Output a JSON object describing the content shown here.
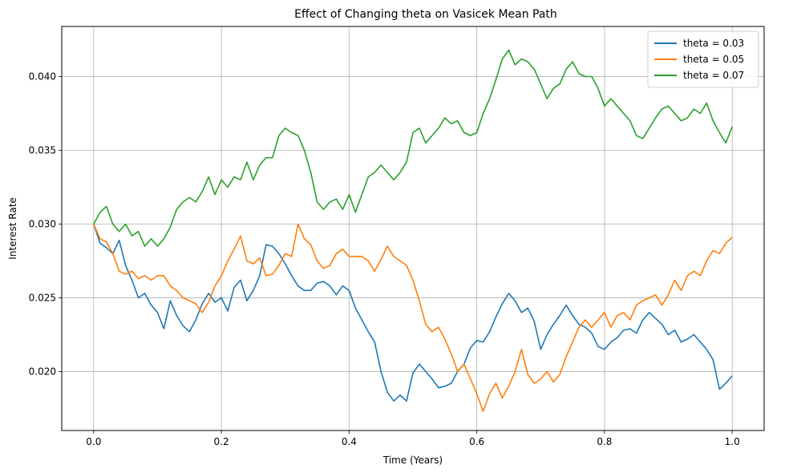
{
  "chart_data": {
    "type": "line",
    "title": "Effect of Changing theta on Vasicek Mean Path",
    "xlabel": "Time (Years)",
    "ylabel": "Interest Rate",
    "xlim": [
      -0.05,
      1.05
    ],
    "ylim": [
      0.016,
      0.0434
    ],
    "xticks": [
      0.0,
      0.2,
      0.4,
      0.6,
      0.8,
      1.0
    ],
    "xtick_labels": [
      "0.0",
      "0.2",
      "0.4",
      "0.6",
      "0.8",
      "1.0"
    ],
    "yticks": [
      0.02,
      0.025,
      0.03,
      0.035,
      0.04
    ],
    "ytick_labels": [
      "0.020",
      "0.025",
      "0.030",
      "0.035",
      "0.040"
    ],
    "grid": true,
    "legend_position": "top-right",
    "series": [
      {
        "name": "theta = 0.03",
        "color": "#1f77b4",
        "points": [
          [
            0.0,
            0.03
          ],
          [
            0.01,
            0.0287
          ],
          [
            0.02,
            0.0284
          ],
          [
            0.03,
            0.028
          ],
          [
            0.04,
            0.0289
          ],
          [
            0.05,
            0.0272
          ],
          [
            0.06,
            0.0262
          ],
          [
            0.07,
            0.025
          ],
          [
            0.08,
            0.0253
          ],
          [
            0.09,
            0.0245
          ],
          [
            0.1,
            0.024
          ],
          [
            0.11,
            0.0229
          ],
          [
            0.12,
            0.0248
          ],
          [
            0.13,
            0.0238
          ],
          [
            0.14,
            0.0231
          ],
          [
            0.15,
            0.0227
          ],
          [
            0.16,
            0.0235
          ],
          [
            0.17,
            0.0246
          ],
          [
            0.18,
            0.0253
          ],
          [
            0.19,
            0.0247
          ],
          [
            0.2,
            0.025
          ],
          [
            0.21,
            0.0241
          ],
          [
            0.22,
            0.0257
          ],
          [
            0.23,
            0.0262
          ],
          [
            0.24,
            0.0248
          ],
          [
            0.25,
            0.0255
          ],
          [
            0.26,
            0.0265
          ],
          [
            0.27,
            0.0286
          ],
          [
            0.28,
            0.0285
          ],
          [
            0.29,
            0.028
          ],
          [
            0.3,
            0.0273
          ],
          [
            0.31,
            0.0265
          ],
          [
            0.32,
            0.0258
          ],
          [
            0.33,
            0.0255
          ],
          [
            0.34,
            0.0255
          ],
          [
            0.35,
            0.026
          ],
          [
            0.36,
            0.0261
          ],
          [
            0.37,
            0.0258
          ],
          [
            0.38,
            0.0252
          ],
          [
            0.39,
            0.0258
          ],
          [
            0.4,
            0.0255
          ],
          [
            0.41,
            0.0243
          ],
          [
            0.42,
            0.0235
          ],
          [
            0.43,
            0.0227
          ],
          [
            0.44,
            0.022
          ],
          [
            0.45,
            0.02
          ],
          [
            0.46,
            0.0186
          ],
          [
            0.47,
            0.018
          ],
          [
            0.48,
            0.0184
          ],
          [
            0.49,
            0.018
          ],
          [
            0.5,
            0.0199
          ],
          [
            0.51,
            0.0205
          ],
          [
            0.52,
            0.02
          ],
          [
            0.53,
            0.0195
          ],
          [
            0.54,
            0.0189
          ],
          [
            0.55,
            0.019
          ],
          [
            0.56,
            0.0192
          ],
          [
            0.57,
            0.02
          ],
          [
            0.58,
            0.0205
          ],
          [
            0.59,
            0.0216
          ],
          [
            0.6,
            0.0221
          ],
          [
            0.61,
            0.022
          ],
          [
            0.62,
            0.0227
          ],
          [
            0.63,
            0.0237
          ],
          [
            0.64,
            0.0246
          ],
          [
            0.65,
            0.0253
          ],
          [
            0.66,
            0.0248
          ],
          [
            0.67,
            0.024
          ],
          [
            0.68,
            0.0243
          ],
          [
            0.69,
            0.0234
          ],
          [
            0.7,
            0.0215
          ],
          [
            0.71,
            0.0225
          ],
          [
            0.72,
            0.0232
          ],
          [
            0.73,
            0.0238
          ],
          [
            0.74,
            0.0245
          ],
          [
            0.75,
            0.0238
          ],
          [
            0.76,
            0.0232
          ],
          [
            0.77,
            0.023
          ],
          [
            0.78,
            0.0226
          ],
          [
            0.79,
            0.0217
          ],
          [
            0.8,
            0.0215
          ],
          [
            0.81,
            0.022
          ],
          [
            0.82,
            0.0223
          ],
          [
            0.83,
            0.0228
          ],
          [
            0.84,
            0.0229
          ],
          [
            0.85,
            0.0226
          ],
          [
            0.86,
            0.0235
          ],
          [
            0.87,
            0.024
          ],
          [
            0.88,
            0.0236
          ],
          [
            0.89,
            0.0232
          ],
          [
            0.9,
            0.0225
          ],
          [
            0.91,
            0.0228
          ],
          [
            0.92,
            0.022
          ],
          [
            0.93,
            0.0222
          ],
          [
            0.94,
            0.0225
          ],
          [
            0.95,
            0.022
          ],
          [
            0.96,
            0.0215
          ],
          [
            0.97,
            0.0208
          ],
          [
            0.98,
            0.0188
          ],
          [
            0.99,
            0.0192
          ],
          [
            1.0,
            0.0197
          ]
        ]
      },
      {
        "name": "theta = 0.05",
        "color": "#ff7f0e",
        "points": [
          [
            0.0,
            0.03
          ],
          [
            0.01,
            0.029
          ],
          [
            0.02,
            0.0288
          ],
          [
            0.03,
            0.028
          ],
          [
            0.04,
            0.0268
          ],
          [
            0.05,
            0.0266
          ],
          [
            0.06,
            0.0268
          ],
          [
            0.07,
            0.0263
          ],
          [
            0.08,
            0.0265
          ],
          [
            0.09,
            0.0262
          ],
          [
            0.1,
            0.0265
          ],
          [
            0.11,
            0.0265
          ],
          [
            0.12,
            0.0258
          ],
          [
            0.13,
            0.0255
          ],
          [
            0.14,
            0.025
          ],
          [
            0.15,
            0.0248
          ],
          [
            0.16,
            0.0246
          ],
          [
            0.17,
            0.024
          ],
          [
            0.18,
            0.0247
          ],
          [
            0.19,
            0.0258
          ],
          [
            0.2,
            0.0265
          ],
          [
            0.21,
            0.0275
          ],
          [
            0.22,
            0.0283
          ],
          [
            0.23,
            0.0292
          ],
          [
            0.24,
            0.0275
          ],
          [
            0.25,
            0.0273
          ],
          [
            0.26,
            0.0277
          ],
          [
            0.27,
            0.0265
          ],
          [
            0.28,
            0.0266
          ],
          [
            0.29,
            0.0272
          ],
          [
            0.3,
            0.028
          ],
          [
            0.31,
            0.0278
          ],
          [
            0.32,
            0.03
          ],
          [
            0.33,
            0.029
          ],
          [
            0.34,
            0.0286
          ],
          [
            0.35,
            0.0275
          ],
          [
            0.36,
            0.027
          ],
          [
            0.37,
            0.0272
          ],
          [
            0.38,
            0.028
          ],
          [
            0.39,
            0.0283
          ],
          [
            0.4,
            0.0278
          ],
          [
            0.41,
            0.0278
          ],
          [
            0.42,
            0.0278
          ],
          [
            0.43,
            0.0275
          ],
          [
            0.44,
            0.0268
          ],
          [
            0.45,
            0.0276
          ],
          [
            0.46,
            0.0285
          ],
          [
            0.47,
            0.0278
          ],
          [
            0.48,
            0.0275
          ],
          [
            0.49,
            0.0272
          ],
          [
            0.5,
            0.0262
          ],
          [
            0.51,
            0.0248
          ],
          [
            0.52,
            0.0232
          ],
          [
            0.53,
            0.0227
          ],
          [
            0.54,
            0.023
          ],
          [
            0.55,
            0.0222
          ],
          [
            0.56,
            0.0212
          ],
          [
            0.57,
            0.02
          ],
          [
            0.58,
            0.0205
          ],
          [
            0.59,
            0.0195
          ],
          [
            0.6,
            0.0185
          ],
          [
            0.61,
            0.0173
          ],
          [
            0.62,
            0.0185
          ],
          [
            0.63,
            0.0192
          ],
          [
            0.64,
            0.0182
          ],
          [
            0.65,
            0.019
          ],
          [
            0.66,
            0.02
          ],
          [
            0.67,
            0.0215
          ],
          [
            0.68,
            0.0198
          ],
          [
            0.69,
            0.0192
          ],
          [
            0.7,
            0.0195
          ],
          [
            0.71,
            0.02
          ],
          [
            0.72,
            0.0193
          ],
          [
            0.73,
            0.0198
          ],
          [
            0.74,
            0.021
          ],
          [
            0.75,
            0.022
          ],
          [
            0.76,
            0.023
          ],
          [
            0.77,
            0.0235
          ],
          [
            0.78,
            0.023
          ],
          [
            0.79,
            0.0235
          ],
          [
            0.8,
            0.024
          ],
          [
            0.81,
            0.023
          ],
          [
            0.82,
            0.0238
          ],
          [
            0.83,
            0.024
          ],
          [
            0.84,
            0.0235
          ],
          [
            0.85,
            0.0245
          ],
          [
            0.86,
            0.0248
          ],
          [
            0.87,
            0.025
          ],
          [
            0.88,
            0.0252
          ],
          [
            0.89,
            0.0245
          ],
          [
            0.9,
            0.0252
          ],
          [
            0.91,
            0.0262
          ],
          [
            0.92,
            0.0255
          ],
          [
            0.93,
            0.0265
          ],
          [
            0.94,
            0.0268
          ],
          [
            0.95,
            0.0265
          ],
          [
            0.96,
            0.0275
          ],
          [
            0.97,
            0.0282
          ],
          [
            0.98,
            0.028
          ],
          [
            0.99,
            0.0287
          ],
          [
            1.0,
            0.0291
          ]
        ]
      },
      {
        "name": "theta = 0.07",
        "color": "#2ca02c",
        "points": [
          [
            0.0,
            0.03
          ],
          [
            0.01,
            0.0308
          ],
          [
            0.02,
            0.0312
          ],
          [
            0.03,
            0.03
          ],
          [
            0.04,
            0.0295
          ],
          [
            0.05,
            0.03
          ],
          [
            0.06,
            0.0292
          ],
          [
            0.07,
            0.0295
          ],
          [
            0.08,
            0.0285
          ],
          [
            0.09,
            0.029
          ],
          [
            0.1,
            0.0285
          ],
          [
            0.11,
            0.029
          ],
          [
            0.12,
            0.0298
          ],
          [
            0.13,
            0.031
          ],
          [
            0.14,
            0.0315
          ],
          [
            0.15,
            0.0318
          ],
          [
            0.16,
            0.0315
          ],
          [
            0.17,
            0.0322
          ],
          [
            0.18,
            0.0332
          ],
          [
            0.19,
            0.032
          ],
          [
            0.2,
            0.033
          ],
          [
            0.21,
            0.0325
          ],
          [
            0.22,
            0.0332
          ],
          [
            0.23,
            0.033
          ],
          [
            0.24,
            0.0342
          ],
          [
            0.25,
            0.033
          ],
          [
            0.26,
            0.034
          ],
          [
            0.27,
            0.0345
          ],
          [
            0.28,
            0.0345
          ],
          [
            0.29,
            0.036
          ],
          [
            0.3,
            0.0365
          ],
          [
            0.31,
            0.0362
          ],
          [
            0.32,
            0.036
          ],
          [
            0.33,
            0.035
          ],
          [
            0.34,
            0.0335
          ],
          [
            0.35,
            0.0315
          ],
          [
            0.36,
            0.031
          ],
          [
            0.37,
            0.0315
          ],
          [
            0.38,
            0.0317
          ],
          [
            0.39,
            0.031
          ],
          [
            0.4,
            0.032
          ],
          [
            0.41,
            0.0308
          ],
          [
            0.42,
            0.032
          ],
          [
            0.43,
            0.0332
          ],
          [
            0.44,
            0.0335
          ],
          [
            0.45,
            0.034
          ],
          [
            0.46,
            0.0335
          ],
          [
            0.47,
            0.033
          ],
          [
            0.48,
            0.0335
          ],
          [
            0.49,
            0.0342
          ],
          [
            0.5,
            0.0362
          ],
          [
            0.51,
            0.0365
          ],
          [
            0.52,
            0.0355
          ],
          [
            0.53,
            0.036
          ],
          [
            0.54,
            0.0365
          ],
          [
            0.55,
            0.0372
          ],
          [
            0.56,
            0.0368
          ],
          [
            0.57,
            0.037
          ],
          [
            0.58,
            0.0362
          ],
          [
            0.59,
            0.036
          ],
          [
            0.6,
            0.0362
          ],
          [
            0.61,
            0.0375
          ],
          [
            0.62,
            0.0385
          ],
          [
            0.63,
            0.0398
          ],
          [
            0.64,
            0.0412
          ],
          [
            0.65,
            0.0418
          ],
          [
            0.66,
            0.0408
          ],
          [
            0.67,
            0.0412
          ],
          [
            0.68,
            0.041
          ],
          [
            0.69,
            0.0405
          ],
          [
            0.7,
            0.0395
          ],
          [
            0.71,
            0.0385
          ],
          [
            0.72,
            0.0392
          ],
          [
            0.73,
            0.0395
          ],
          [
            0.74,
            0.0405
          ],
          [
            0.75,
            0.041
          ],
          [
            0.76,
            0.0402
          ],
          [
            0.77,
            0.04
          ],
          [
            0.78,
            0.04
          ],
          [
            0.79,
            0.0392
          ],
          [
            0.8,
            0.038
          ],
          [
            0.81,
            0.0385
          ],
          [
            0.82,
            0.038
          ],
          [
            0.83,
            0.0375
          ],
          [
            0.84,
            0.037
          ],
          [
            0.85,
            0.036
          ],
          [
            0.86,
            0.0358
          ],
          [
            0.87,
            0.0365
          ],
          [
            0.88,
            0.0372
          ],
          [
            0.89,
            0.0378
          ],
          [
            0.9,
            0.038
          ],
          [
            0.91,
            0.0375
          ],
          [
            0.92,
            0.037
          ],
          [
            0.93,
            0.0372
          ],
          [
            0.94,
            0.0378
          ],
          [
            0.95,
            0.0375
          ],
          [
            0.96,
            0.0382
          ],
          [
            0.97,
            0.037
          ],
          [
            0.98,
            0.0362
          ],
          [
            0.99,
            0.0355
          ],
          [
            1.0,
            0.0366
          ]
        ]
      }
    ]
  }
}
